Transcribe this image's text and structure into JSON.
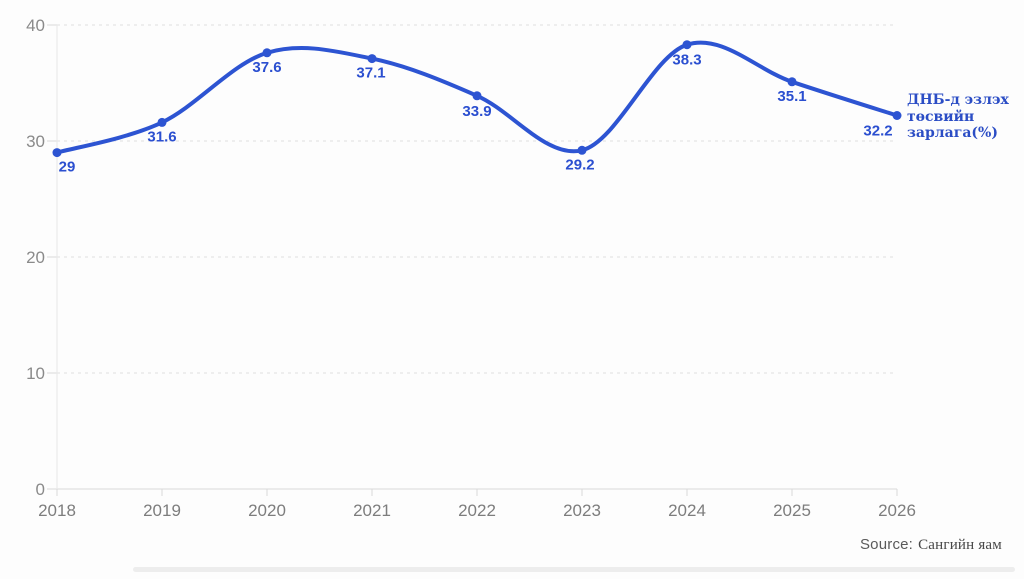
{
  "chart_data": {
    "type": "line",
    "categories": [
      "2018",
      "2019",
      "2020",
      "2021",
      "2022",
      "2023",
      "2024",
      "2025",
      "2026"
    ],
    "series": [
      {
        "name": "ДНБ-д эзлэх төсвийн зарлага(%)",
        "values": [
          29,
          31.6,
          37.6,
          37.1,
          33.9,
          29.2,
          38.3,
          35.1,
          32.2
        ],
        "color": "#2d54d2"
      }
    ],
    "value_labels": [
      "29",
      "31.6",
      "37.6",
      "37.1",
      "33.9",
      "29.2",
      "38.3",
      "35.1",
      "32.2"
    ],
    "ylim": [
      0,
      40
    ],
    "yticks": [
      0,
      10,
      20,
      30,
      40
    ],
    "grid": "horizontal-dashed",
    "legend_position": "right-of-last-point",
    "title": "",
    "xlabel": "",
    "ylabel": ""
  },
  "legend": {
    "series_label": "ДНБ-д эзлэх төсвийн зарлага(%)"
  },
  "footer": {
    "source_prefix": "Source:",
    "source_name": "Сангийн яам"
  },
  "colors": {
    "line": "#2d54d2",
    "value_label": "#2b4fd0",
    "legend_text": "#2b4dc5",
    "axis_text": "#8a8a8a",
    "x_axis_text": "#7d7d7d",
    "grid": "#e0e0e0",
    "axis_line": "#d9d9d9"
  }
}
